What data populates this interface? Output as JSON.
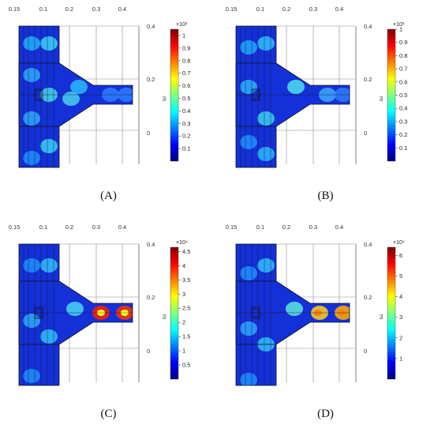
{
  "panels": [
    {
      "caption": "(A)",
      "axis_top_ticks": [
        "0.15",
        "0.1",
        "0.2",
        "0.3",
        "0.4"
      ],
      "axis_right_ticks": [
        "0.4",
        "0.2",
        "0"
      ],
      "axis_right_label": "m",
      "colorbar_exponent": "×10³",
      "colorbar_ticks": [
        "1",
        "0.9",
        "0.8",
        "0.7",
        "0.6",
        "0.5",
        "0.4",
        "0.3",
        "0.2",
        "0.1"
      ],
      "colorbar_max": 1.05
    },
    {
      "caption": "(B)",
      "axis_top_ticks": [
        "0.15",
        "0.1",
        "0.2",
        "0.3",
        "0.4"
      ],
      "axis_right_ticks": [
        "0.4",
        "0.2",
        "0"
      ],
      "axis_right_label": "m",
      "colorbar_exponent": "×10³",
      "colorbar_ticks": [
        "1",
        "0.9",
        "0.8",
        "0.7",
        "0.6",
        "0.5",
        "0.4",
        "0.3",
        "0.2",
        "0.1"
      ],
      "colorbar_max": 1.0
    },
    {
      "caption": "(C)",
      "axis_top_ticks": [
        "0.15",
        "0.1",
        "0.2",
        "0.3",
        "0.4"
      ],
      "axis_right_ticks": [
        "0.4",
        "0.2",
        "0"
      ],
      "axis_right_label": "m",
      "colorbar_exponent": "×10⁴",
      "colorbar_ticks": [
        "4.5",
        "4",
        "3.5",
        "3",
        "2.5",
        "2",
        "1.5",
        "1",
        "0.5"
      ],
      "colorbar_max": 4.65
    },
    {
      "caption": "(D)",
      "axis_top_ticks": [
        "0.15",
        "0.1",
        "0.2",
        "0.3",
        "0.4"
      ],
      "axis_right_ticks": [
        "0.4",
        "0.2",
        "0"
      ],
      "axis_right_label": "m",
      "colorbar_exponent": "×10⁴",
      "colorbar_ticks": [
        "6",
        "5",
        "4",
        "3",
        "2",
        "1"
      ],
      "colorbar_max": 6.4
    }
  ],
  "colors": {
    "jet": [
      "#00007f",
      "#0000ff",
      "#007fff",
      "#00ffff",
      "#7fff7f",
      "#ffff00",
      "#ff7f00",
      "#ff0000",
      "#7f0000"
    ],
    "grid": "#8c8c8c",
    "outline": "#111111"
  }
}
